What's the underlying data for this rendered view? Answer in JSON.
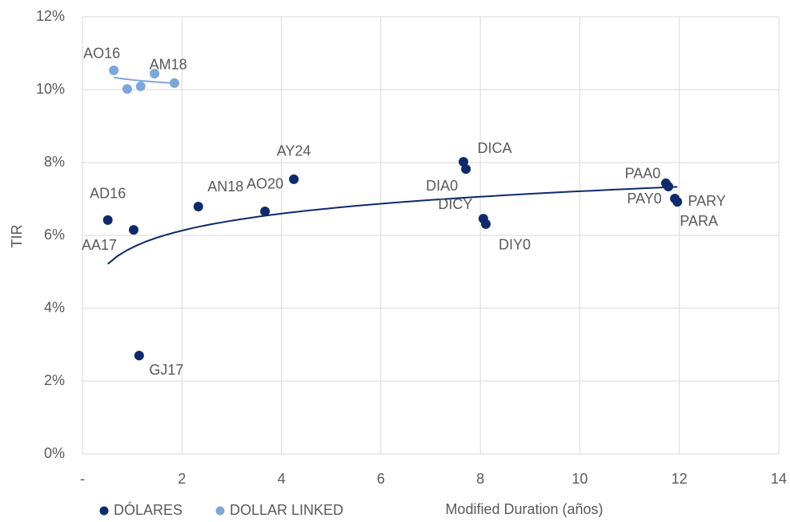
{
  "chart_data": {
    "type": "scatter",
    "x_label": "Modified Duration (años)",
    "y_label": "TIR",
    "xlim": [
      0,
      14
    ],
    "ylim": [
      0,
      12
    ],
    "xticks": [
      {
        "value": 0,
        "label": "-"
      },
      2,
      4,
      6,
      8,
      10,
      12,
      14
    ],
    "yticks": [
      {
        "value": 0,
        "label": "0%"
      },
      {
        "value": 2,
        "label": "2%"
      },
      {
        "value": 4,
        "label": "4%"
      },
      {
        "value": 6,
        "label": "6%"
      },
      {
        "value": 8,
        "label": "8%"
      },
      {
        "value": 10,
        "label": "10%"
      },
      {
        "value": 12,
        "label": "12%"
      }
    ],
    "grid": true,
    "legend": "bottom-left",
    "trendline": "log",
    "series": [
      {
        "name": "DÓLARES",
        "color": "#0d2a6b",
        "x": [
          0.51,
          1.03,
          1.14,
          2.33,
          3.67,
          4.25,
          7.66,
          7.71,
          8.06,
          8.11,
          11.73,
          11.78,
          11.91,
          11.96
        ],
        "values": [
          6.42,
          6.15,
          2.7,
          6.79,
          6.66,
          7.54,
          8.02,
          7.82,
          6.46,
          6.31,
          7.43,
          7.34,
          7.01,
          6.92
        ],
        "labels": [
          "AD16",
          "AA17",
          "GJ17",
          "AN18",
          "AO20",
          "AY24",
          "DICA",
          "DIA0",
          "DICY",
          "DIY0",
          "PAA0",
          "PAY0",
          "PARY",
          "PARA"
        ]
      },
      {
        "name": "DOLLAR LINKED",
        "color": "#7da7d9",
        "x": [
          0.63,
          0.9,
          1.17,
          1.45,
          1.85
        ],
        "values": [
          10.53,
          10.02,
          10.09,
          10.44,
          10.18
        ],
        "labels": [
          "AO16",
          null,
          null,
          "AM18",
          null
        ]
      }
    ]
  }
}
